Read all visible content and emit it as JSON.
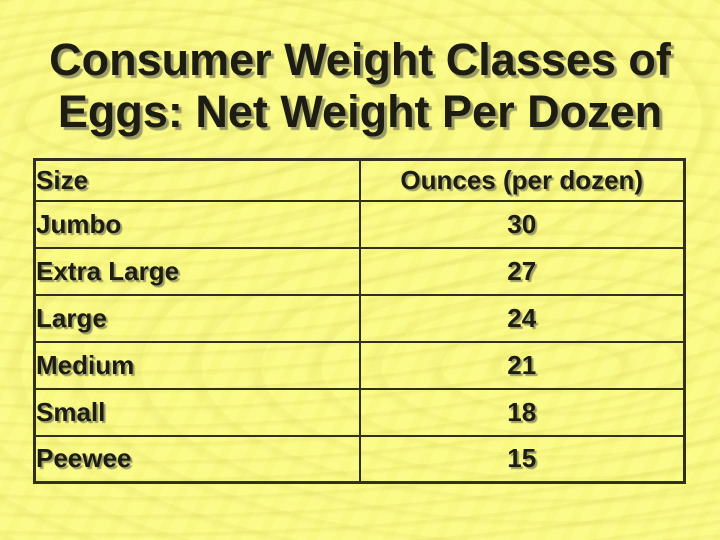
{
  "slide": {
    "title_line1": "Consumer Weight Classes of",
    "title_line2": "Eggs: Net Weight Per Dozen"
  },
  "table": {
    "headers": {
      "size": "Size",
      "ounces": "Ounces (per dozen)"
    },
    "rows": [
      {
        "size": "Jumbo",
        "ounces": "30"
      },
      {
        "size": "Extra Large",
        "ounces": "27"
      },
      {
        "size": "Large",
        "ounces": "24"
      },
      {
        "size": "Medium",
        "ounces": "21"
      },
      {
        "size": "Small",
        "ounces": "18"
      },
      {
        "size": "Peewee",
        "ounces": "15"
      }
    ]
  },
  "colors": {
    "background": "#fbfb86",
    "text": "#1c1c10",
    "border": "#30301c",
    "shadow": "#9a9a68"
  }
}
